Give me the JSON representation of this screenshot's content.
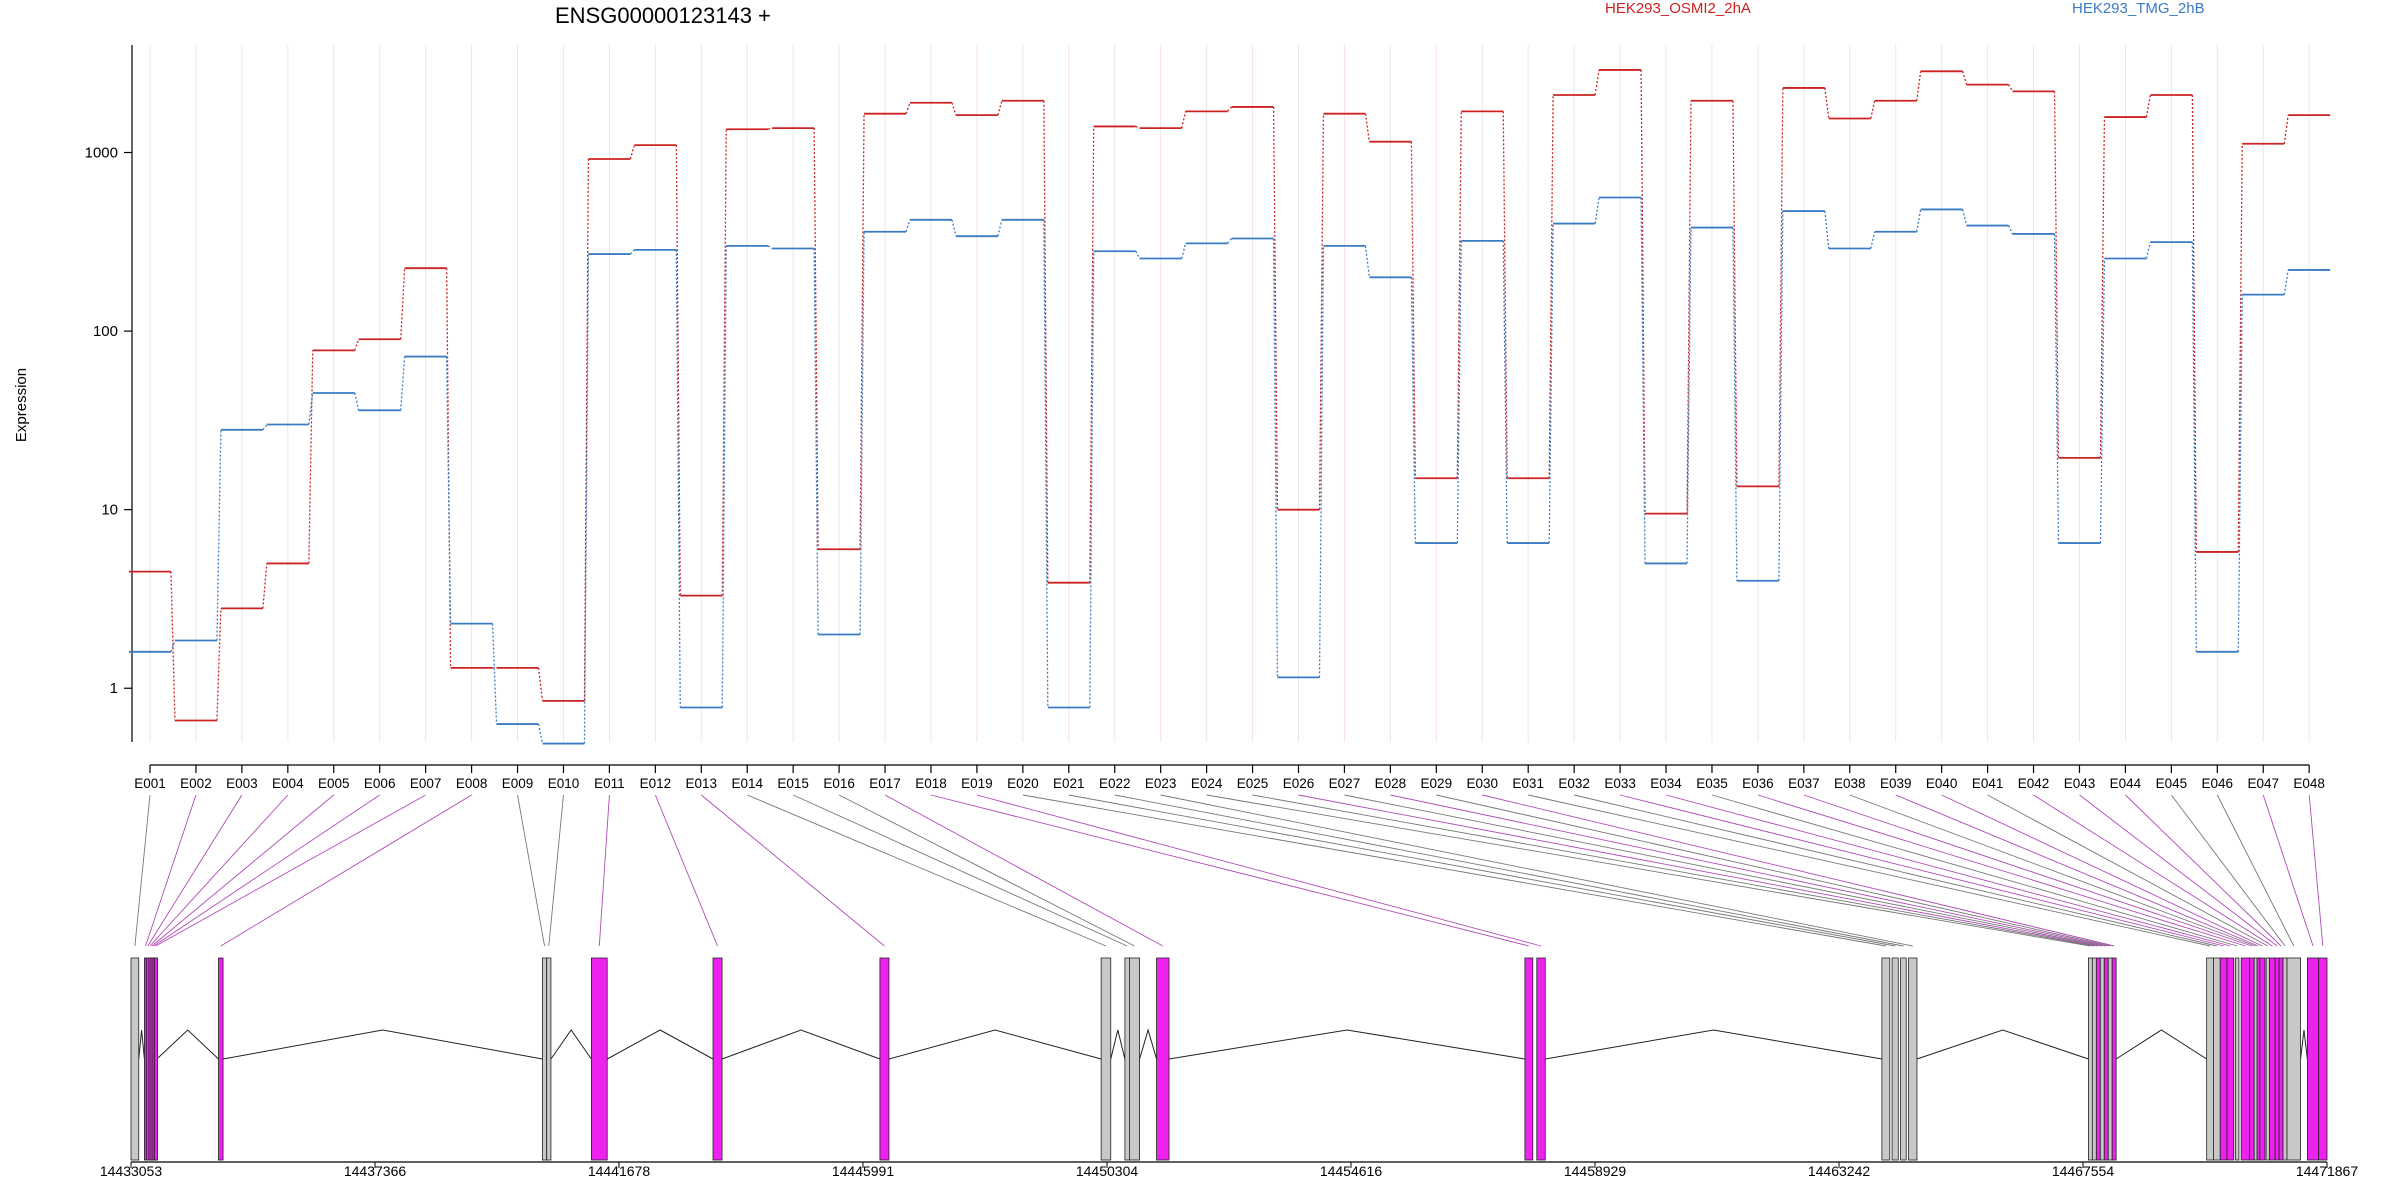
{
  "chart_data": {
    "type": "line",
    "title": "ENSG00000123143 +",
    "ylabel": "Expression",
    "y_scale": "log",
    "ylim": [
      0.5,
      4000
    ],
    "yticks": [
      {
        "value": 1,
        "label": "1"
      },
      {
        "value": 10,
        "label": "10"
      },
      {
        "value": 100,
        "label": "100"
      },
      {
        "value": 1000,
        "label": "1000"
      }
    ],
    "categories": [
      "E001",
      "E002",
      "E003",
      "E004",
      "E005",
      "E006",
      "E007",
      "E008",
      "E009",
      "E010",
      "E011",
      "E012",
      "E013",
      "E014",
      "E015",
      "E016",
      "E017",
      "E018",
      "E019",
      "E020",
      "E021",
      "E022",
      "E023",
      "E024",
      "E025",
      "E026",
      "E027",
      "E028",
      "E029",
      "E030",
      "E031",
      "E032",
      "E033",
      "E034",
      "E035",
      "E036",
      "E037",
      "E038",
      "E039",
      "E040",
      "E041",
      "E042",
      "E043",
      "E044",
      "E045",
      "E046",
      "E047",
      "E048"
    ],
    "series": [
      {
        "name": "HEK293_OSMI2_2hA",
        "color": "#cc2222",
        "values": [
          4.5,
          0.66,
          2.8,
          5.0,
          78,
          90,
          225,
          1.3,
          1.3,
          0.85,
          920,
          1100,
          3.3,
          1350,
          1370,
          6.0,
          1650,
          1900,
          1620,
          1950,
          3.9,
          1400,
          1370,
          1700,
          1800,
          10,
          1650,
          1150,
          15,
          1700,
          15,
          2100,
          2900,
          9.5,
          1950,
          13.5,
          2300,
          1550,
          1950,
          2850,
          2400,
          2200,
          19.5,
          1580,
          2100,
          5.8,
          1120,
          1620
        ]
      },
      {
        "name": "HEK293_TMG_2hB",
        "color": "#3a7cc4",
        "values": [
          1.6,
          1.85,
          28,
          30,
          45,
          36,
          72,
          2.3,
          0.63,
          0.49,
          270,
          285,
          0.78,
          300,
          290,
          2.0,
          360,
          420,
          340,
          420,
          0.78,
          280,
          255,
          310,
          330,
          1.15,
          300,
          200,
          6.5,
          320,
          6.5,
          400,
          560,
          5.0,
          380,
          4.0,
          470,
          290,
          360,
          480,
          390,
          350,
          6.5,
          255,
          315,
          1.6,
          160,
          220
        ]
      }
    ],
    "gene_track": {
      "genomic_ticks": [
        "14433053",
        "14437366",
        "14441678",
        "14445991",
        "14450304",
        "14454616",
        "14458929",
        "14463242",
        "14467554",
        "14471867"
      ],
      "range": [
        14433053,
        14471867
      ],
      "exon_colors": {
        "normal": "#c8c8c8",
        "highlighted": "#ee22ee"
      },
      "exons": [
        {
          "id": "E001",
          "start": 14433053,
          "end": 14433190,
          "highlighted": false
        },
        {
          "id": "E002",
          "start": 14433290,
          "end": 14433330,
          "highlighted": true
        },
        {
          "id": "E003",
          "start": 14433330,
          "end": 14433370,
          "highlighted": true
        },
        {
          "id": "E004",
          "start": 14433370,
          "end": 14433405,
          "highlighted": true
        },
        {
          "id": "E005",
          "start": 14433405,
          "end": 14433440,
          "highlighted": true
        },
        {
          "id": "E006",
          "start": 14433440,
          "end": 14433470,
          "highlighted": true
        },
        {
          "id": "E007",
          "start": 14433470,
          "end": 14433510,
          "highlighted": true
        },
        {
          "id": "E008",
          "start": 14434600,
          "end": 14434680,
          "highlighted": true
        },
        {
          "id": "E009",
          "start": 14440325,
          "end": 14440400,
          "highlighted": false
        },
        {
          "id": "E010",
          "start": 14440400,
          "end": 14440475,
          "highlighted": false
        },
        {
          "id": "E011",
          "start": 14441190,
          "end": 14441470,
          "highlighted": true
        },
        {
          "id": "E012",
          "start": 14443340,
          "end": 14443500,
          "highlighted": true
        },
        {
          "id": "E013",
          "start": 14446290,
          "end": 14446450,
          "highlighted": true
        },
        {
          "id": "E014",
          "start": 14450200,
          "end": 14450370,
          "highlighted": false
        },
        {
          "id": "E015",
          "start": 14450620,
          "end": 14450700,
          "highlighted": false
        },
        {
          "id": "E016",
          "start": 14450700,
          "end": 14450880,
          "highlighted": false
        },
        {
          "id": "E017",
          "start": 14451180,
          "end": 14451400,
          "highlighted": true
        },
        {
          "id": "E018",
          "start": 14457690,
          "end": 14457830,
          "highlighted": true
        },
        {
          "id": "E019",
          "start": 14457900,
          "end": 14458050,
          "highlighted": true
        },
        {
          "id": "E020",
          "start": 14464000,
          "end": 14464140,
          "highlighted": false
        },
        {
          "id": "E021",
          "start": 14464180,
          "end": 14464290,
          "highlighted": false
        },
        {
          "id": "E022",
          "start": 14464330,
          "end": 14464430,
          "highlighted": false
        },
        {
          "id": "E023",
          "start": 14464470,
          "end": 14464620,
          "highlighted": false
        },
        {
          "id": "E024",
          "start": 14467650,
          "end": 14467720,
          "highlighted": false
        },
        {
          "id": "E025",
          "start": 14467720,
          "end": 14467790,
          "highlighted": false
        },
        {
          "id": "E026",
          "start": 14467790,
          "end": 14467860,
          "highlighted": true
        },
        {
          "id": "E027",
          "start": 14467860,
          "end": 14467930,
          "highlighted": false
        },
        {
          "id": "E028",
          "start": 14467930,
          "end": 14468000,
          "highlighted": true
        },
        {
          "id": "E029",
          "start": 14468000,
          "end": 14468070,
          "highlighted": false
        },
        {
          "id": "E030",
          "start": 14468070,
          "end": 14468140,
          "highlighted": true
        },
        {
          "id": "E031",
          "start": 14469740,
          "end": 14469860,
          "highlighted": false
        },
        {
          "id": "E032",
          "start": 14469860,
          "end": 14469980,
          "highlighted": false
        },
        {
          "id": "E033",
          "start": 14469980,
          "end": 14470100,
          "highlighted": true
        },
        {
          "id": "E034",
          "start": 14470100,
          "end": 14470220,
          "highlighted": true
        },
        {
          "id": "E035",
          "start": 14470250,
          "end": 14470310,
          "highlighted": false
        },
        {
          "id": "E036",
          "start": 14470350,
          "end": 14470500,
          "highlighted": true
        },
        {
          "id": "E037",
          "start": 14470500,
          "end": 14470580,
          "highlighted": true
        },
        {
          "id": "E038",
          "start": 14470580,
          "end": 14470630,
          "highlighted": false
        },
        {
          "id": "E039",
          "start": 14470630,
          "end": 14470680,
          "highlighted": true
        },
        {
          "id": "E040",
          "start": 14470680,
          "end": 14470770,
          "highlighted": true
        },
        {
          "id": "E041",
          "start": 14470790,
          "end": 14470850,
          "highlighted": false
        },
        {
          "id": "E042",
          "start": 14470850,
          "end": 14470950,
          "highlighted": true
        },
        {
          "id": "E043",
          "start": 14470950,
          "end": 14471020,
          "highlighted": true
        },
        {
          "id": "E044",
          "start": 14471020,
          "end": 14471090,
          "highlighted": true
        },
        {
          "id": "E045",
          "start": 14471090,
          "end": 14471160,
          "highlighted": false
        },
        {
          "id": "E046",
          "start": 14471160,
          "end": 14471400,
          "highlighted": false
        },
        {
          "id": "E047",
          "start": 14471520,
          "end": 14471720,
          "highlighted": true
        },
        {
          "id": "E048",
          "start": 14471720,
          "end": 14471867,
          "highlighted": true
        }
      ]
    }
  }
}
